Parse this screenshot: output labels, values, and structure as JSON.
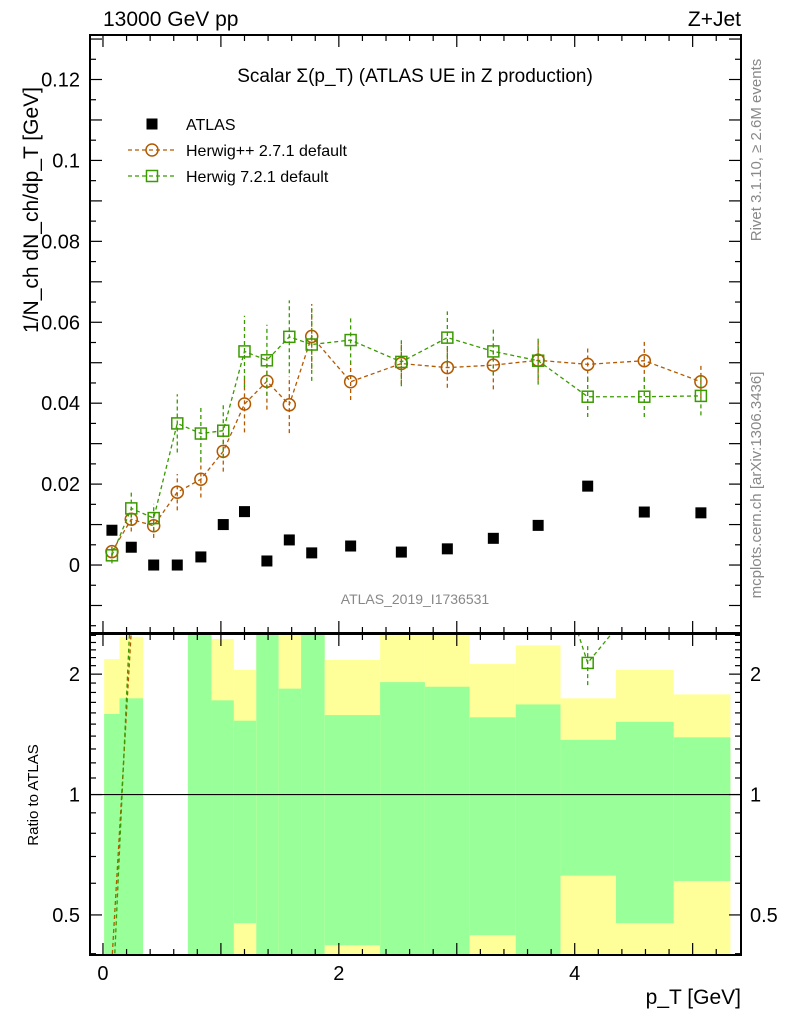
{
  "header": {
    "left": "13000 GeV pp",
    "right": "Z+Jet"
  },
  "side_text": {
    "rivet": "Rivet 3.1.10, ≥ 2.6M events",
    "mcplots": "mcplots.cern.ch [arXiv:1306.3436]"
  },
  "watermark": "ATLAS_2019_I1736531",
  "chart_data": [
    {
      "type": "scatter",
      "title": "Scalar Σ(p_T) (ATLAS UE in Z production)",
      "ylabel": "1/N_ch dN_ch/dp_T [GeV]",
      "xlabel": "p_T [GeV]",
      "xlim": [
        -0.11,
        5.41
      ],
      "ylim": [
        -0.0168,
        0.131
      ],
      "yticks": [
        0,
        0.02,
        0.04,
        0.06,
        0.08,
        0.1,
        0.12
      ],
      "ytick_labels": [
        "0",
        "0.02",
        "0.04",
        "0.06",
        "0.08",
        "0.1",
        "0.12"
      ],
      "legend_position": "top-left",
      "x": [
        0.076,
        0.24,
        0.43,
        0.63,
        0.83,
        1.02,
        1.2,
        1.39,
        1.58,
        1.77,
        2.1,
        2.53,
        2.92,
        3.31,
        3.69,
        4.11,
        4.59,
        5.07
      ],
      "series": [
        {
          "name": "ATLAS",
          "color": "#000000",
          "marker": "filled-square",
          "values": [
            0.0086,
            0.0044,
            0.0,
            0.0,
            0.002,
            0.01,
            0.0132,
            0.001,
            0.0062,
            0.003,
            0.0047,
            0.0032,
            0.004,
            0.0066,
            0.0098,
            0.0195,
            0.0131,
            0.0129
          ]
        },
        {
          "name": "Herwig++ 2.7.1 default",
          "color": "#b35a00",
          "marker": "open-circle",
          "values": [
            0.0033,
            0.0113,
            0.0097,
            0.018,
            0.0212,
            0.0281,
            0.0398,
            0.0454,
            0.0396,
            0.0565,
            0.0453,
            0.0498,
            0.0488,
            0.0494,
            0.0506,
            0.0496,
            0.0505,
            0.0453
          ],
          "errors": [
            0.0015,
            0.003,
            0.003,
            0.0045,
            0.0045,
            0.005,
            0.007,
            0.007,
            0.007,
            0.008,
            0.0045,
            0.005,
            0.005,
            0.006,
            0.005,
            0.004,
            0.005,
            0.004
          ]
        },
        {
          "name": "Herwig 7.2.1 default",
          "color": "#3a9a00",
          "marker": "open-square",
          "values": [
            0.0024,
            0.014,
            0.0116,
            0.035,
            0.0325,
            0.0332,
            0.0528,
            0.0506,
            0.0564,
            0.0545,
            0.0556,
            0.0502,
            0.0562,
            0.0528,
            0.0505,
            0.0416,
            0.0416,
            0.0418
          ],
          "errors": [
            0.002,
            0.004,
            0.0035,
            0.0072,
            0.0068,
            0.0068,
            0.0088,
            0.0088,
            0.009,
            0.009,
            0.006,
            0.006,
            0.0065,
            0.006,
            0.0059,
            0.005,
            0.005,
            0.0048
          ]
        }
      ]
    },
    {
      "type": "line",
      "title": "Ratio to ATLAS",
      "ylabel": "Ratio to ATLAS",
      "xlabel": "p_T [GeV]",
      "yscale": "log",
      "ylim": [
        0.397,
        2.52
      ],
      "xticks": [
        0,
        2,
        4
      ],
      "xtick_labels": [
        "0",
        "2",
        "4"
      ],
      "yticks": [
        0.5,
        1,
        2
      ],
      "ytick_labels": [
        "0.5",
        "1",
        "2"
      ],
      "band_colors": {
        "inner": "#99ff99",
        "outer": "#ffff99"
      },
      "bin_edges": [
        0.01,
        0.14,
        0.34,
        0.53,
        0.72,
        0.92,
        1.11,
        1.3,
        1.49,
        1.68,
        1.88,
        2.35,
        2.73,
        3.11,
        3.5,
        3.88,
        4.35,
        4.84,
        5.32
      ],
      "bands": [
        {
          "inner": [
            0.3,
            1.59
          ],
          "outer": [
            0.41,
            2.18
          ]
        },
        {
          "inner": [
            0.3,
            1.74
          ],
          "outer": [
            0.3,
            2.48
          ]
        },
        null,
        null,
        {
          "inner": [
            0.3,
            3.0
          ],
          "outer": [
            0.3,
            3.0
          ]
        },
        {
          "inner": [
            0.3,
            1.72
          ],
          "outer": [
            0.3,
            2.45
          ]
        },
        {
          "inner": [
            0.477,
            1.53
          ],
          "outer": [
            0.3,
            2.05
          ]
        },
        {
          "inner": [
            0.3,
            3.0
          ],
          "outer": [
            0.3,
            3.0
          ]
        },
        {
          "inner": [
            0.3,
            1.84
          ],
          "outer": [
            0.3,
            3.0
          ]
        },
        {
          "inner": [
            0.3,
            3.0
          ],
          "outer": [
            0.3,
            3.0
          ]
        },
        {
          "inner": [
            0.42,
            1.58
          ],
          "outer": [
            0.3,
            2.17
          ]
        },
        {
          "inner": [
            0.3,
            1.91
          ],
          "outer": [
            0.3,
            3.0
          ]
        },
        {
          "inner": [
            0.3,
            1.86
          ],
          "outer": [
            0.3,
            3.0
          ]
        },
        {
          "inner": [
            0.445,
            1.56
          ],
          "outer": [
            0.3,
            2.12
          ]
        },
        {
          "inner": [
            0.3,
            1.68
          ],
          "outer": [
            0.3,
            2.36
          ]
        },
        {
          "inner": [
            0.627,
            1.37
          ],
          "outer": [
            0.3,
            1.74
          ]
        },
        {
          "inner": [
            0.477,
            1.52
          ],
          "outer": [
            0.3,
            2.05
          ]
        },
        {
          "inner": [
            0.608,
            1.39
          ],
          "outer": [
            0.3,
            1.78
          ]
        }
      ]
    }
  ]
}
